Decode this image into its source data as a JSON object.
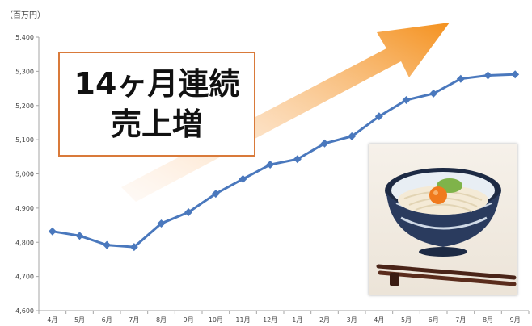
{
  "unit_label": "（百万円）",
  "headline": {
    "line1": "14ヶ月連続",
    "line2": "売上増"
  },
  "colors": {
    "line": "#4a78bd",
    "arrow_start": "#fde5d2",
    "arrow_end": "#f4911e",
    "box_border": "#d97a3a"
  },
  "chart_data": {
    "type": "line",
    "categories": [
      "4月",
      "5月",
      "6月",
      "7月",
      "8月",
      "9月",
      "10月",
      "11月",
      "12月",
      "1月",
      "2月",
      "3月",
      "4月",
      "5月",
      "6月",
      "7月",
      "8月",
      "9月"
    ],
    "values": [
      4832,
      4819,
      4792,
      4786,
      4855,
      4888,
      4942,
      4985,
      5027,
      5043,
      5089,
      5110,
      5168,
      5216,
      5235,
      5278,
      5288,
      5291
    ],
    "ylim": [
      4600,
      5400
    ],
    "yticks": [
      4600,
      4700,
      4800,
      4900,
      5000,
      5100,
      5200,
      5300,
      5400
    ],
    "ytick_labels": [
      "4,600",
      "4,700",
      "4,800",
      "4,900",
      "5,000",
      "5,100",
      "5,200",
      "5,300",
      "5,400"
    ],
    "title": "",
    "xlabel": "",
    "ylabel": "（百万円）",
    "grid": false,
    "marker": "diamond"
  }
}
